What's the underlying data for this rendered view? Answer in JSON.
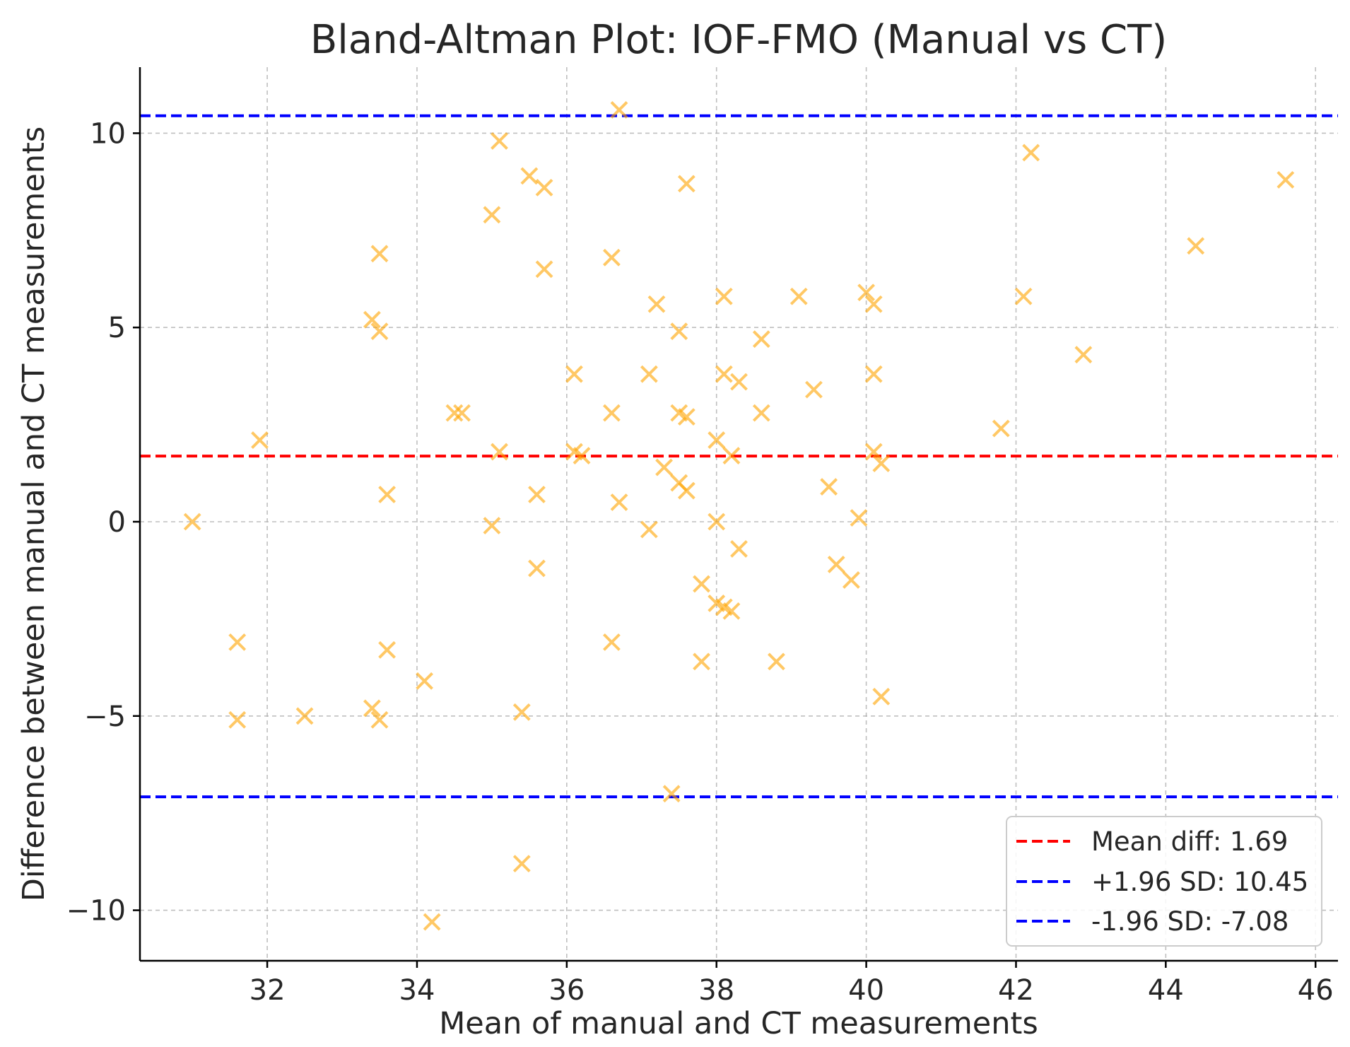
{
  "chart_data": {
    "type": "scatter",
    "title": "Bland-Altman Plot: IOF-FMO (Manual vs CT)",
    "xlabel": "Mean of manual and CT measurements",
    "ylabel": "Difference between manual and CT measurements",
    "xlim": [
      30.3,
      46.3
    ],
    "ylim": [
      -11.3,
      11.7
    ],
    "xticks": [
      32,
      34,
      36,
      38,
      40,
      42,
      44,
      46
    ],
    "yticks": [
      10,
      5,
      0,
      -5,
      -10
    ],
    "xtick_labels": [
      "32",
      "34",
      "36",
      "38",
      "40",
      "42",
      "44",
      "46"
    ],
    "ytick_labels": [
      "10",
      "5",
      "0",
      "−5",
      "−10"
    ],
    "grid": true,
    "legend_position": "lower-right",
    "marker": "x",
    "marker_color": "#ffa500",
    "reference_lines": [
      {
        "name": "mean",
        "y": 1.69,
        "color": "#ff0000",
        "label": "Mean diff: 1.69"
      },
      {
        "name": "upper",
        "y": 10.45,
        "color": "#0000ff",
        "label": "+1.96 SD: 10.45"
      },
      {
        "name": "lower",
        "y": -7.08,
        "color": "#0000ff",
        "label": "-1.96 SD: -7.08"
      }
    ],
    "points": [
      {
        "x": 36.7,
        "y": 10.6
      },
      {
        "x": 35.1,
        "y": 9.8
      },
      {
        "x": 42.2,
        "y": 9.5
      },
      {
        "x": 35.5,
        "y": 8.9
      },
      {
        "x": 35.7,
        "y": 8.6
      },
      {
        "x": 37.6,
        "y": 8.7
      },
      {
        "x": 45.6,
        "y": 8.8
      },
      {
        "x": 35.0,
        "y": 7.9
      },
      {
        "x": 44.4,
        "y": 7.1
      },
      {
        "x": 33.5,
        "y": 6.9
      },
      {
        "x": 36.6,
        "y": 6.8
      },
      {
        "x": 35.7,
        "y": 6.5
      },
      {
        "x": 38.1,
        "y": 5.8
      },
      {
        "x": 39.1,
        "y": 5.8
      },
      {
        "x": 40.0,
        "y": 5.9
      },
      {
        "x": 42.1,
        "y": 5.8
      },
      {
        "x": 40.1,
        "y": 5.6
      },
      {
        "x": 37.2,
        "y": 5.6
      },
      {
        "x": 33.4,
        "y": 5.2
      },
      {
        "x": 33.5,
        "y": 4.9
      },
      {
        "x": 37.5,
        "y": 4.9
      },
      {
        "x": 38.6,
        "y": 4.7
      },
      {
        "x": 42.9,
        "y": 4.3
      },
      {
        "x": 36.1,
        "y": 3.8
      },
      {
        "x": 37.1,
        "y": 3.8
      },
      {
        "x": 38.1,
        "y": 3.8
      },
      {
        "x": 40.1,
        "y": 3.8
      },
      {
        "x": 38.3,
        "y": 3.6
      },
      {
        "x": 39.3,
        "y": 3.4
      },
      {
        "x": 34.6,
        "y": 2.8
      },
      {
        "x": 34.5,
        "y": 2.8
      },
      {
        "x": 36.6,
        "y": 2.8
      },
      {
        "x": 37.5,
        "y": 2.8
      },
      {
        "x": 37.6,
        "y": 2.7
      },
      {
        "x": 38.6,
        "y": 2.8
      },
      {
        "x": 41.8,
        "y": 2.4
      },
      {
        "x": 31.9,
        "y": 2.1
      },
      {
        "x": 38.0,
        "y": 2.1
      },
      {
        "x": 35.1,
        "y": 1.8
      },
      {
        "x": 36.1,
        "y": 1.8
      },
      {
        "x": 36.2,
        "y": 1.7
      },
      {
        "x": 38.2,
        "y": 1.7
      },
      {
        "x": 40.1,
        "y": 1.8
      },
      {
        "x": 40.2,
        "y": 1.5
      },
      {
        "x": 37.3,
        "y": 1.4
      },
      {
        "x": 37.5,
        "y": 1.0
      },
      {
        "x": 39.5,
        "y": 0.9
      },
      {
        "x": 37.6,
        "y": 0.8
      },
      {
        "x": 33.6,
        "y": 0.7
      },
      {
        "x": 35.6,
        "y": 0.7
      },
      {
        "x": 36.7,
        "y": 0.5
      },
      {
        "x": 39.9,
        "y": 0.1
      },
      {
        "x": 31.0,
        "y": 0.0
      },
      {
        "x": 38.0,
        "y": 0.0
      },
      {
        "x": 35.0,
        "y": -0.1
      },
      {
        "x": 37.1,
        "y": -0.2
      },
      {
        "x": 38.3,
        "y": -0.7
      },
      {
        "x": 39.6,
        "y": -1.1
      },
      {
        "x": 35.6,
        "y": -1.2
      },
      {
        "x": 39.8,
        "y": -1.5
      },
      {
        "x": 37.8,
        "y": -1.6
      },
      {
        "x": 38.0,
        "y": -2.1
      },
      {
        "x": 38.1,
        "y": -2.2
      },
      {
        "x": 38.2,
        "y": -2.3
      },
      {
        "x": 31.6,
        "y": -3.1
      },
      {
        "x": 36.6,
        "y": -3.1
      },
      {
        "x": 33.6,
        "y": -3.3
      },
      {
        "x": 37.8,
        "y": -3.6
      },
      {
        "x": 38.8,
        "y": -3.6
      },
      {
        "x": 34.1,
        "y": -4.1
      },
      {
        "x": 40.2,
        "y": -4.5
      },
      {
        "x": 33.4,
        "y": -4.8
      },
      {
        "x": 35.4,
        "y": -4.9
      },
      {
        "x": 32.5,
        "y": -5.0
      },
      {
        "x": 31.6,
        "y": -5.1
      },
      {
        "x": 33.5,
        "y": -5.1
      },
      {
        "x": 37.4,
        "y": -7.0
      },
      {
        "x": 35.4,
        "y": -8.8
      },
      {
        "x": 34.2,
        "y": -10.3
      }
    ]
  }
}
